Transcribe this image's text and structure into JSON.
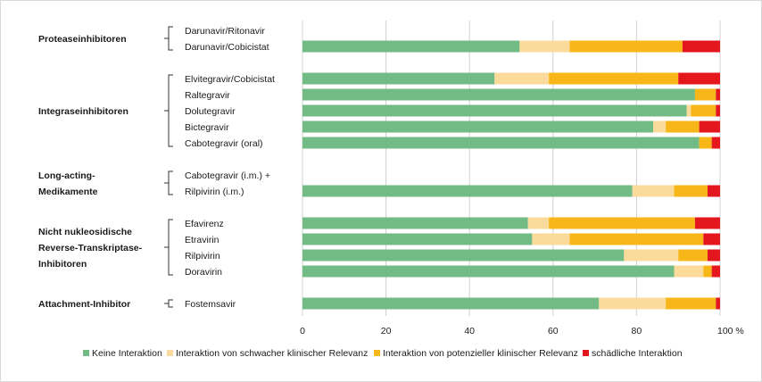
{
  "chart_data": {
    "type": "bar",
    "orientation": "horizontal",
    "stacked": true,
    "xlim": [
      0,
      100
    ],
    "xticks": [
      0,
      20,
      40,
      60,
      80,
      100
    ],
    "xtick_labels": [
      "0",
      "20",
      "40",
      "60",
      "80",
      "100 %"
    ],
    "grid": true,
    "legend_placement": "bottom",
    "series": [
      {
        "name": "Keine Interaktion",
        "color": "#72bb84"
      },
      {
        "name": "Interaktion von schwacher klinischer Relevanz",
        "color": "#fbdb9b"
      },
      {
        "name": "Interaktion von potenzieller klinischer Relevanz",
        "color": "#f8b719"
      },
      {
        "name": "schädliche Interaktion",
        "color": "#e3171d"
      }
    ],
    "groups": [
      {
        "label_lines": [
          "Proteaseinhibitoren"
        ],
        "drugs": [
          {
            "label_lines": [
              "Darunavir/Ritonavir"
            ],
            "values": null
          },
          {
            "label_lines": [
              "Darunavir/Cobicistat"
            ],
            "values": [
              52,
              12,
              27,
              9
            ]
          }
        ]
      },
      {
        "label_lines": [
          "Integraseinhibitoren"
        ],
        "drugs": [
          {
            "label_lines": [
              "Elvitegravir/Cobicistat"
            ],
            "values": [
              46,
              13,
              31,
              10
            ]
          },
          {
            "label_lines": [
              "Raltegravir"
            ],
            "values": [
              94,
              0,
              5,
              1
            ]
          },
          {
            "label_lines": [
              "Dolutegravir"
            ],
            "values": [
              92,
              1,
              6,
              1
            ]
          },
          {
            "label_lines": [
              "Bictegravir"
            ],
            "values": [
              84,
              3,
              8,
              5
            ]
          },
          {
            "label_lines": [
              "Cabotegravir (oral)"
            ],
            "values": [
              95,
              0,
              3,
              2
            ]
          }
        ]
      },
      {
        "label_lines": [
          "Long-acting-",
          "Medikamente"
        ],
        "drugs": [
          {
            "label_lines": [
              "Cabotegravir (i.m.) +",
              "Rilpivirin (i.m.)"
            ],
            "values": [
              79,
              10,
              8,
              3
            ]
          }
        ]
      },
      {
        "label_lines": [
          "Nicht nukleosidische",
          "Reverse-Transkriptase-",
          "Inhibitoren"
        ],
        "drugs": [
          {
            "label_lines": [
              "Efavirenz"
            ],
            "values": [
              54,
              5,
              35,
              6
            ]
          },
          {
            "label_lines": [
              "Etravirin"
            ],
            "values": [
              55,
              9,
              32,
              4
            ]
          },
          {
            "label_lines": [
              "Rilpivirin"
            ],
            "values": [
              77,
              13,
              7,
              3
            ]
          },
          {
            "label_lines": [
              "Doravirin"
            ],
            "values": [
              89,
              7,
              2,
              2
            ]
          }
        ]
      },
      {
        "label_lines": [
          "Attachment-Inhibitor"
        ],
        "drugs": [
          {
            "label_lines": [
              "Fostemsavir"
            ],
            "values": [
              71,
              16,
              12,
              1
            ]
          }
        ]
      }
    ]
  }
}
